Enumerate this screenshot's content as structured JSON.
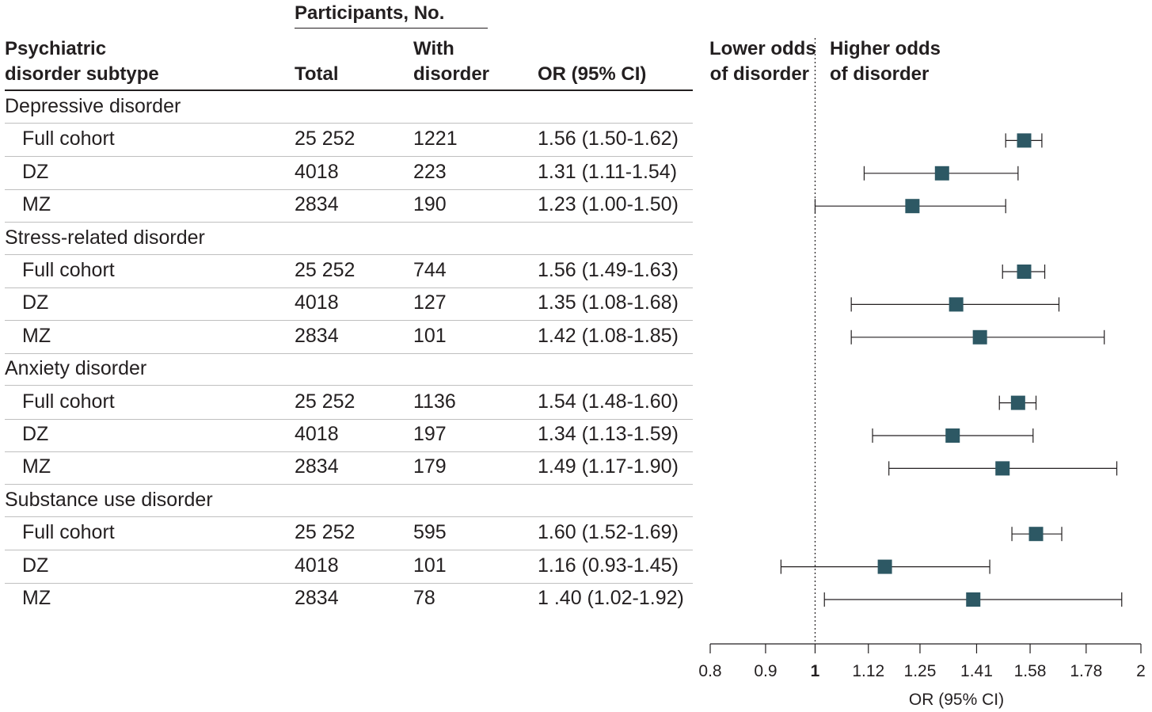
{
  "header": {
    "participants": "Participants, No.",
    "subtype": "Psychiatric\ndisorder subtype",
    "total": "Total",
    "with_disorder": "With\ndisorder",
    "or": "OR (95% CI)",
    "lower": "Lower odds\nof disorder",
    "higher": "Higher odds\nof disorder"
  },
  "groups": [
    {
      "name": "Depressive disorder",
      "rows": [
        {
          "label": "Full cohort",
          "total": "25 252",
          "with": "1221",
          "or_text": "1.56 (1.50-1.62)"
        },
        {
          "label": "DZ",
          "total": "4018",
          "with": "223",
          "or_text": "1.31 (1.11-1.54)"
        },
        {
          "label": "MZ",
          "total": "2834",
          "with": "190",
          "or_text": "1.23 (1.00-1.50)"
        }
      ]
    },
    {
      "name": "Stress-related disorder",
      "rows": [
        {
          "label": "Full cohort",
          "total": "25 252",
          "with": "744",
          "or_text": "1.56 (1.49-1.63)"
        },
        {
          "label": "DZ",
          "total": "4018",
          "with": "127",
          "or_text": "1.35 (1.08-1.68)"
        },
        {
          "label": "MZ",
          "total": "2834",
          "with": "101",
          "or_text": "1.42 (1.08-1.85)"
        }
      ]
    },
    {
      "name": "Anxiety disorder",
      "rows": [
        {
          "label": "Full cohort",
          "total": "25 252",
          "with": "1136",
          "or_text": "1.54 (1.48-1.60)"
        },
        {
          "label": "DZ",
          "total": "4018",
          "with": "197",
          "or_text": "1.34 (1.13-1.59)"
        },
        {
          "label": "MZ",
          "total": "2834",
          "with": "179",
          "or_text": "1.49 (1.17-1.90)"
        }
      ]
    },
    {
      "name": "Substance use disorder",
      "rows": [
        {
          "label": "Full cohort",
          "total": "25 252",
          "with": "595",
          "or_text": "1.60 (1.52-1.69)"
        },
        {
          "label": "DZ",
          "total": "4018",
          "with": "101",
          "or_text": "1.16 (0.93-1.45)"
        },
        {
          "label": "MZ",
          "total": "2834",
          "with": "78",
          "or_text": "1 .40 (1.02-1.92)"
        }
      ]
    }
  ],
  "chart_data": {
    "type": "forest",
    "xlabel": "OR (95% CI)",
    "x_scale": "log",
    "xlim": [
      0.8,
      2
    ],
    "xticks": [
      0.8,
      0.9,
      1,
      1.12,
      1.25,
      1.41,
      1.58,
      1.78,
      2
    ],
    "xtick_labels": [
      "0.8",
      "0.9",
      "1",
      "1.12",
      "1.25",
      "1.41",
      "1.58",
      "1.78",
      "2"
    ],
    "reference_line": 1,
    "marker_color": "#2d5864",
    "points": [
      {
        "group": "Depressive disorder",
        "label": "Full cohort",
        "or": 1.56,
        "lo": 1.5,
        "hi": 1.62
      },
      {
        "group": "Depressive disorder",
        "label": "DZ",
        "or": 1.31,
        "lo": 1.11,
        "hi": 1.54
      },
      {
        "group": "Depressive disorder",
        "label": "MZ",
        "or": 1.23,
        "lo": 1.0,
        "hi": 1.5
      },
      {
        "group": "Stress-related disorder",
        "label": "Full cohort",
        "or": 1.56,
        "lo": 1.49,
        "hi": 1.63
      },
      {
        "group": "Stress-related disorder",
        "label": "DZ",
        "or": 1.35,
        "lo": 1.08,
        "hi": 1.68
      },
      {
        "group": "Stress-related disorder",
        "label": "MZ",
        "or": 1.42,
        "lo": 1.08,
        "hi": 1.85
      },
      {
        "group": "Anxiety disorder",
        "label": "Full cohort",
        "or": 1.54,
        "lo": 1.48,
        "hi": 1.6
      },
      {
        "group": "Anxiety disorder",
        "label": "DZ",
        "or": 1.34,
        "lo": 1.13,
        "hi": 1.59
      },
      {
        "group": "Anxiety disorder",
        "label": "MZ",
        "or": 1.49,
        "lo": 1.17,
        "hi": 1.9
      },
      {
        "group": "Substance use disorder",
        "label": "Full cohort",
        "or": 1.6,
        "lo": 1.52,
        "hi": 1.69
      },
      {
        "group": "Substance use disorder",
        "label": "DZ",
        "or": 1.16,
        "lo": 0.93,
        "hi": 1.45
      },
      {
        "group": "Substance use disorder",
        "label": "MZ",
        "or": 1.4,
        "lo": 1.02,
        "hi": 1.92
      }
    ]
  }
}
